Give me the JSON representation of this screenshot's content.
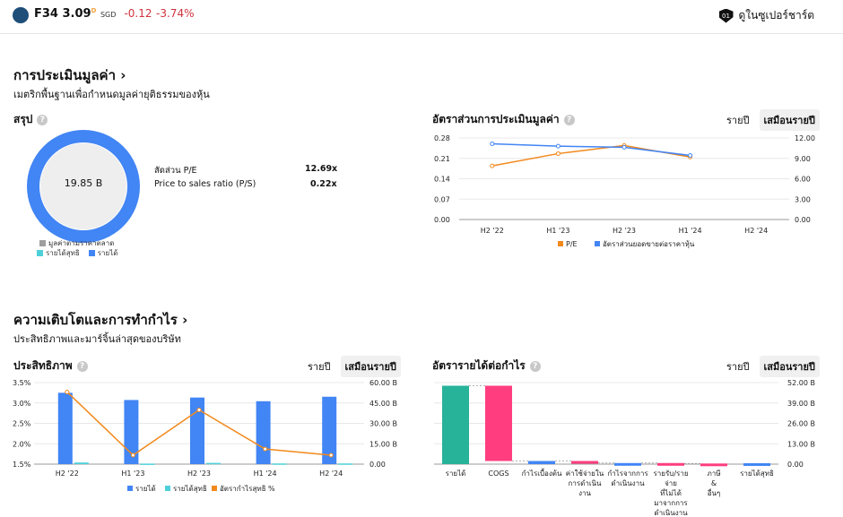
{
  "header": {
    "ticker": "F34",
    "price": "3.09",
    "price_sup": "D",
    "currency": "SGD",
    "change": "-0.12",
    "change_pct": "-3.74%",
    "supercharts": "ดูในซูเปอร์ชาร์ต",
    "supercharts_badge": "01"
  },
  "valuation": {
    "title": "การประเมินมูลค่า ›",
    "subtitle": "เมตริกพื้นฐานเพื่อกำหนดมูลค่ายุติธรรมของหุ้น",
    "summary_title": "สรุป",
    "donut_center": "19.85 B",
    "legend": [
      "มูลค่าตามราคาตลาด",
      "รายได้สุทธิ",
      "รายได้"
    ],
    "metrics": [
      {
        "label": "สัดส่วน P/E",
        "value": "12.69x"
      },
      {
        "label": "Price to sales ratio (P/S)",
        "value": "0.22x"
      }
    ],
    "ratio_title": "อัตราส่วนการประเมินมูลค่า",
    "toggle": [
      "รายปี",
      "เสมือนรายปี"
    ]
  },
  "growth": {
    "title": "ความเติบโตและการทำกำไร ›",
    "subtitle": "ประสิทธิภาพและมาร์จิ้นล่าสุดของบริษัท",
    "eff_title": "ประสิทธิภาพ",
    "rev_title": "อัตรารายได้ต่อกำไร",
    "toggle": [
      "รายปี",
      "เสมือนรายปี"
    ]
  },
  "colors": {
    "blue": "#4285f4",
    "teal": "#4dd0d9",
    "orange": "#f2891c",
    "gray": "#9e9e9e",
    "green": "#26b39a",
    "pink": "#ff3d7f"
  },
  "chart_data": [
    {
      "type": "line",
      "categories": [
        "H2 '22",
        "H1 '23",
        "H2 '23",
        "H1 '24",
        "H2 '24"
      ],
      "y_left": {
        "ticks": [
          "0.28",
          "0.21",
          "0.14",
          "0.07",
          "0.00"
        ],
        "range": [
          0,
          0.28
        ]
      },
      "y_right": {
        "ticks": [
          "12.00",
          "9.00",
          "6.00",
          "3.00",
          "0.00"
        ],
        "range": [
          0,
          12
        ]
      },
      "series": [
        {
          "name": "P/E",
          "axis": "right",
          "values": [
            7.9,
            9.7,
            10.9,
            9.2,
            null
          ]
        },
        {
          "name": "อัตราส่วนยอดขายต่อราคาหุ้น",
          "axis": "left",
          "values": [
            0.26,
            0.252,
            0.248,
            0.22,
            null
          ]
        }
      ]
    },
    {
      "type": "bar",
      "categories": [
        "H2 '22",
        "H1 '23",
        "H2 '23",
        "H1 '24",
        "H2 '24"
      ],
      "y_left": {
        "ticks": [
          "3.5%",
          "3.0%",
          "2.5%",
          "2.0%",
          "1.5%"
        ],
        "range": [
          1.5,
          3.5
        ]
      },
      "y_right": {
        "ticks": [
          "60.00 B",
          "45.00 B",
          "30.00 B",
          "15.00 B",
          "0.00"
        ],
        "range": [
          0,
          60
        ]
      },
      "series": [
        {
          "name": "รายได้",
          "axis": "right",
          "values": [
            52.5,
            47.2,
            49.0,
            46.3,
            49.6
          ]
        },
        {
          "name": "รายได้สุทธิ",
          "axis": "right",
          "values": [
            1.2,
            0.4,
            0.9,
            0.5,
            0.5
          ]
        },
        {
          "name": "อัตรากำไรสุทธิ %",
          "axis": "left",
          "values": [
            3.27,
            1.72,
            2.83,
            1.87,
            1.72
          ]
        }
      ]
    },
    {
      "type": "bar",
      "categories": [
        "รายได้",
        "COGS",
        "กำไรเบื้องต้น",
        "ค่าใช้จ่ายใน การดำเนิน งาน",
        "กำไรจากการ ดำเนินงาน",
        "รายรับ/ราย จ่าย ที่ไม่ได้ มาจากการ ดำเนินงาน",
        "ภาษี & อื่นๆ",
        "รายได้สุทธิ"
      ],
      "y_right": {
        "ticks": [
          "52.00 B",
          "39.00 B",
          "26.00 B",
          "13.00 B",
          "0.00"
        ],
        "range": [
          0,
          52
        ]
      },
      "values": [
        50.0,
        -48.0,
        2.0,
        -1.3,
        0.7,
        -0.3,
        -0.3,
        0.6
      ]
    }
  ]
}
